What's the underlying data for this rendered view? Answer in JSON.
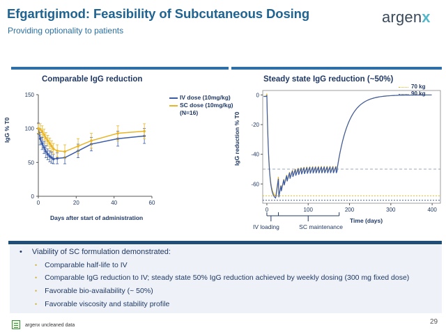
{
  "header": {
    "title": "Efgartigimod: Feasibility of Subcutaneous Dosing",
    "subtitle": "Providing optionality to patients",
    "logo_base": "argen",
    "logo_mark": "x"
  },
  "colors": {
    "title": "#1f6391",
    "bar": "#2f6fa7",
    "iv": "#3a5ba7",
    "sc": "#e8b526",
    "bullet_dot": "#d4b73a"
  },
  "chart_data": [
    {
      "type": "line",
      "title": "Comparable IgG reduction",
      "xlabel": "Days after start of administration",
      "ylabel": "IgG % T0",
      "xlim": [
        0,
        60
      ],
      "ylim": [
        0,
        150
      ],
      "xticks": [
        0,
        20,
        40,
        60
      ],
      "yticks": [
        0,
        50,
        100,
        150
      ],
      "legend_note": "(N=16)",
      "series": [
        {
          "name": "IV dose (10mg/kg)",
          "color": "#3a5ba7",
          "x": [
            0,
            1,
            2,
            3,
            4,
            5,
            6,
            7,
            8,
            10,
            14,
            21,
            28,
            42,
            56
          ],
          "y": [
            100,
            85,
            78,
            72,
            66,
            62,
            59,
            57,
            55,
            56,
            57,
            67,
            77,
            85,
            89
          ],
          "err": [
            8,
            9,
            9,
            9,
            9,
            8,
            8,
            8,
            7,
            8,
            9,
            10,
            10,
            11,
            11
          ]
        },
        {
          "name": "SC dose (10mg/kg)",
          "color": "#e8b526",
          "x": [
            0,
            1,
            2,
            3,
            4,
            5,
            6,
            7,
            8,
            10,
            14,
            21,
            28,
            42,
            56
          ],
          "y": [
            100,
            99,
            96,
            91,
            86,
            82,
            78,
            74,
            70,
            67,
            66,
            74,
            82,
            93,
            96
          ],
          "err": [
            7,
            8,
            8,
            8,
            8,
            8,
            8,
            8,
            8,
            9,
            10,
            11,
            11,
            11,
            11
          ]
        }
      ]
    },
    {
      "type": "line",
      "title": "Steady state IgG reduction (~50%)",
      "xlabel": "Time (days)",
      "ylabel": "IgG reduction % T0",
      "xlim": [
        -10,
        420
      ],
      "ylim": [
        -73,
        3
      ],
      "xticks": [
        0,
        100,
        200,
        300,
        400
      ],
      "yticks": [
        0,
        -20,
        -40,
        -60
      ],
      "reference_lines": [
        -50,
        -68,
        -71
      ],
      "phase_labels": [
        "IV loading",
        "SC maintenance"
      ],
      "series": [
        {
          "name": "70 kg",
          "color": "#e8b526"
        },
        {
          "name": "90 kg",
          "color": "#3a5ba7"
        }
      ]
    }
  ],
  "bullets": {
    "marker": "•",
    "sub_marker": "•",
    "main": "Viability of SC formulation demonstrated:",
    "items": [
      "Comparable half-life to IV",
      "Comparable IgG reduction to IV; steady state 50% IgG reduction achieved by weekly dosing (300 mg fixed dose)",
      "Favorable bio-availability (~ 50%)",
      "Favorable viscosity and stability profile"
    ]
  },
  "footer": {
    "note": "argenx  uncleaned data",
    "page": "29"
  }
}
